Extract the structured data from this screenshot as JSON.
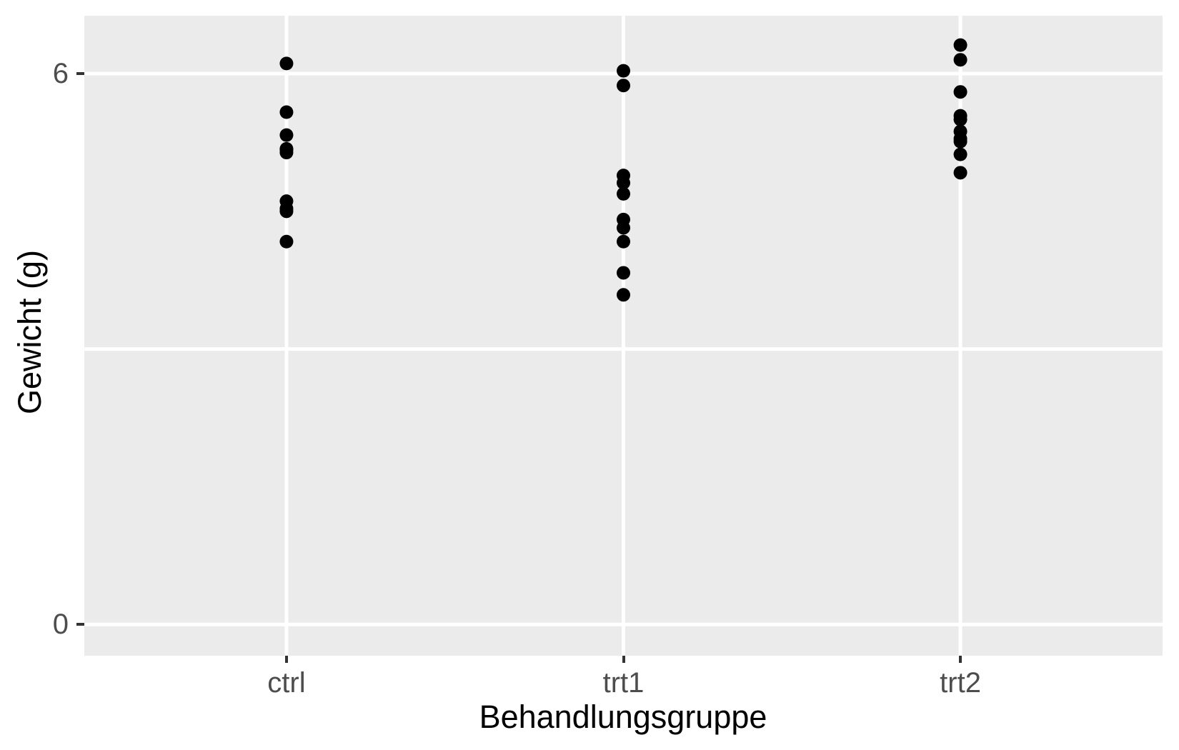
{
  "chart_data": {
    "type": "scatter",
    "title": "",
    "xlabel": "Behandlungsgruppe",
    "ylabel": "Gewicht (g)",
    "categories": [
      "ctrl",
      "trt1",
      "trt2"
    ],
    "series": [
      {
        "name": "ctrl",
        "values": [
          4.17,
          5.58,
          5.18,
          6.11,
          4.5,
          4.61,
          5.17,
          4.53,
          5.33,
          5.14
        ]
      },
      {
        "name": "trt1",
        "values": [
          4.81,
          4.17,
          4.41,
          3.59,
          5.87,
          3.83,
          6.03,
          4.89,
          4.32,
          4.69
        ]
      },
      {
        "name": "trt2",
        "values": [
          6.31,
          5.12,
          5.54,
          5.5,
          5.37,
          5.29,
          4.92,
          6.15,
          5.8,
          5.26
        ]
      }
    ],
    "x_axis": {
      "positions": [
        1,
        2,
        3
      ],
      "xlim": [
        0.4,
        3.6
      ]
    },
    "y_axis": {
      "major_ticks": [
        {
          "label": "6",
          "value": 6
        },
        {
          "label": "0",
          "value": 0
        }
      ],
      "minor_gridlines": [
        3
      ],
      "ylim": [
        -0.34,
        6.63
      ]
    },
    "grid": true,
    "legend": "none",
    "point_radius_px": 9.5,
    "colors": {
      "point": "#000000",
      "panel_background": "#EBEBEB",
      "gridline": "#FFFFFF",
      "tick_label": "#4D4D4D",
      "tick_mark": "#333333",
      "axis_title": "#000000",
      "figure_background": "#FFFFFF"
    }
  }
}
